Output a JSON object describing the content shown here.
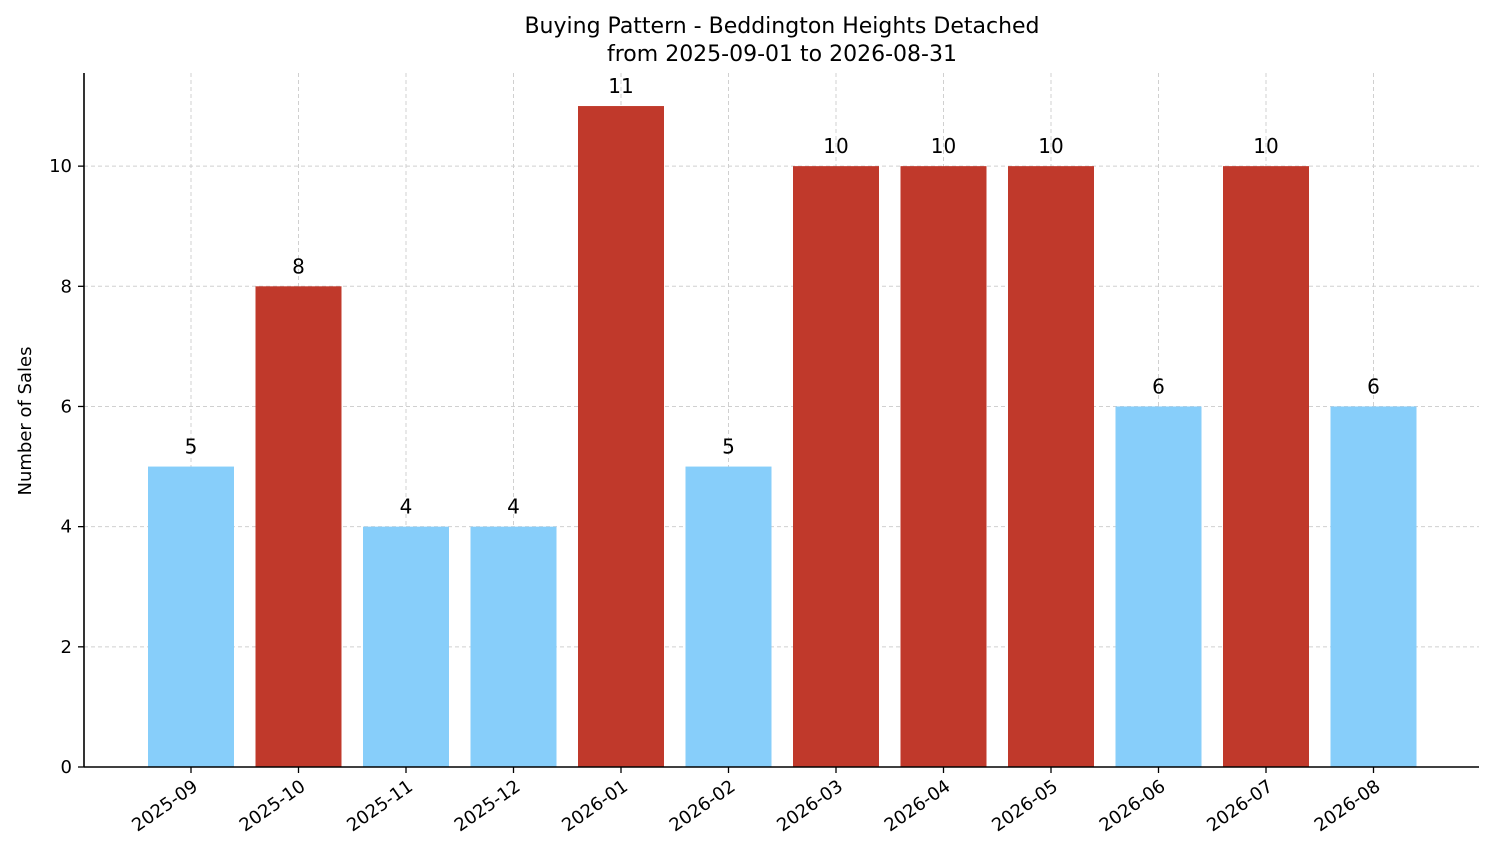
{
  "chart_data": {
    "type": "bar",
    "title": "Buying Pattern - Beddington Heights Detached",
    "subtitle": "from 2025-09-01 to 2026-08-31",
    "xlabel": "",
    "ylabel": "Number of Sales",
    "categories": [
      "2025-09",
      "2025-10",
      "2025-11",
      "2025-12",
      "2026-01",
      "2026-02",
      "2026-03",
      "2026-04",
      "2026-05",
      "2026-06",
      "2026-07",
      "2026-08"
    ],
    "values": [
      5,
      8,
      4,
      4,
      11,
      5,
      10,
      10,
      10,
      6,
      10,
      6
    ],
    "ylim": [
      0,
      11.55
    ],
    "yticks": [
      0,
      2,
      4,
      6,
      8,
      10
    ],
    "grid": true,
    "colors": {
      "high": "#c0392b",
      "low": "#87cefa"
    },
    "bar_colors": [
      "low",
      "high",
      "low",
      "low",
      "high",
      "low",
      "high",
      "high",
      "high",
      "low",
      "high",
      "low"
    ]
  }
}
